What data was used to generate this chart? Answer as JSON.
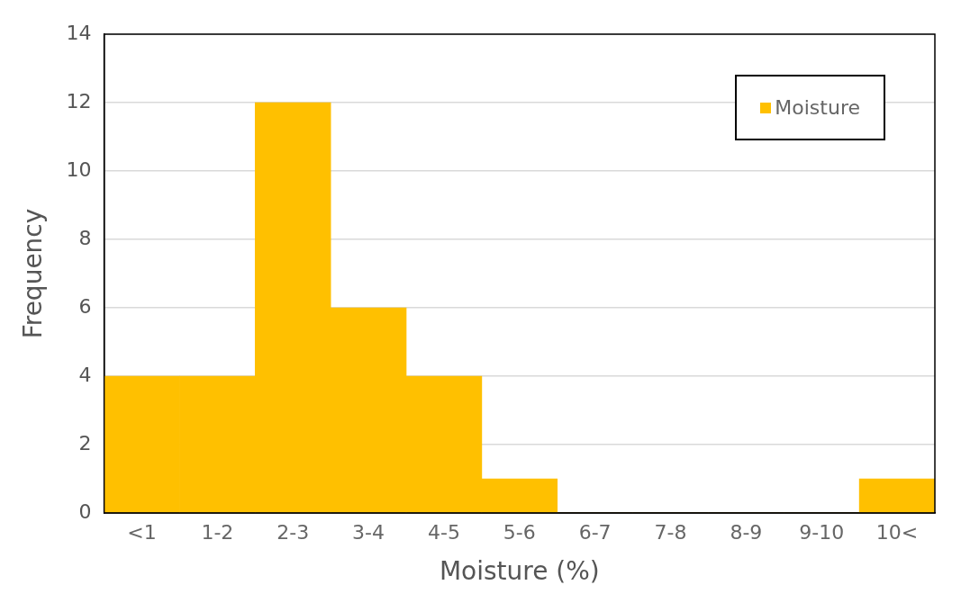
{
  "chart_data": {
    "type": "bar",
    "xlabel": "Moisture (%)",
    "ylabel": "Frequency",
    "categories": [
      "<1",
      "1-2",
      "2-3",
      "3-4",
      "4-5",
      "5-6",
      "6-7",
      "7-8",
      "8-9",
      "9-10",
      "10<"
    ],
    "series": [
      {
        "name": "Moisture",
        "color": "#ffc000",
        "values": [
          4,
          4,
          12,
          6,
          4,
          1,
          0,
          0,
          0,
          0,
          1
        ]
      }
    ],
    "ylim": [
      0,
      14
    ],
    "yticks": [
      0,
      2,
      4,
      6,
      8,
      10,
      12,
      14
    ],
    "grid": "y",
    "legend": "top right"
  }
}
